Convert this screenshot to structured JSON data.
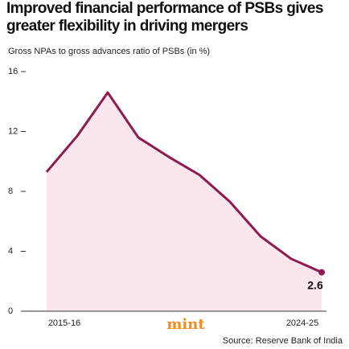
{
  "chart_data": {
    "type": "area",
    "title": "Improved financial performance of PSBs gives greater flexibility in driving mergers",
    "subtitle": "Gross NPAs to gross advances ratio of PSBs (in %)",
    "categories": [
      "2015-16",
      null,
      null,
      null,
      null,
      null,
      null,
      null,
      null,
      "2024-25"
    ],
    "values": [
      9.3,
      11.7,
      14.6,
      11.6,
      10.3,
      9.1,
      7.3,
      5.0,
      3.5,
      2.6
    ],
    "color": "#8c1c4e",
    "fill": "#fbe6ee",
    "ylim": [
      0,
      16
    ],
    "yticks": [
      0,
      4,
      8,
      12,
      16
    ],
    "logo": "mint",
    "source": "Source: Reserve Bank of India"
  }
}
